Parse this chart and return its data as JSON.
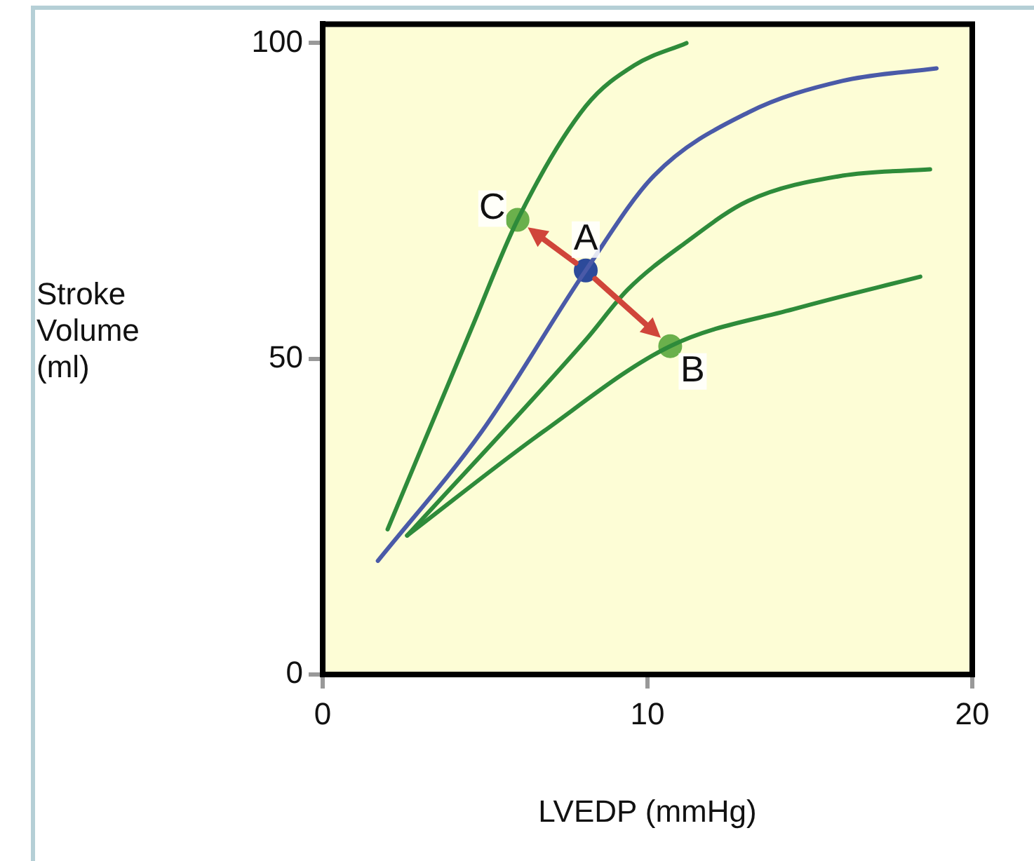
{
  "chart_data": {
    "type": "line",
    "xlabel": "LVEDP (mmHg)",
    "ylabel": "Stroke\nVolume\n(ml)",
    "xlim": [
      0,
      20
    ],
    "ylim": [
      0,
      103
    ],
    "xticks": [
      0,
      10,
      20
    ],
    "yticks": [
      0,
      50,
      100
    ],
    "series": [
      {
        "color": "#4a5aa8",
        "x": [
          1.7,
          4.9,
          8.1,
          10.2,
          13.1,
          16,
          18.9
        ],
        "values": [
          18,
          38.5,
          64,
          79,
          89,
          94,
          96
        ]
      },
      {
        "color": "#2e8b3a",
        "x": [
          2.0,
          4.6,
          6.0,
          8.1,
          9.6,
          11.2
        ],
        "values": [
          23,
          55,
          72,
          90,
          96.5,
          100
        ]
      },
      {
        "color": "#2e8b3a",
        "x": [
          2.6,
          8.1,
          9.4,
          11.2,
          13.1,
          16,
          18.7
        ],
        "values": [
          22,
          53,
          61,
          68.5,
          75,
          79,
          80
        ]
      },
      {
        "color": "#2e8b3a",
        "x": [
          2.6,
          6.8,
          10.7,
          14.6,
          18.4
        ],
        "values": [
          22,
          38.5,
          52,
          58,
          63
        ]
      },
      {
        "type": "scatter",
        "marker": "circle",
        "x": [
          8.1,
          6.0,
          10.7
        ],
        "values": [
          64,
          72,
          52
        ],
        "colors": [
          "#2c4a9a",
          "#6ab04c",
          "#6ab04c"
        ]
      }
    ],
    "annotations": [
      {
        "text": "A",
        "x": 8.1,
        "y": 64
      },
      {
        "text": "C",
        "x": 6.0,
        "y": 72
      },
      {
        "text": "B",
        "x": 10.7,
        "y": 52
      }
    ]
  }
}
